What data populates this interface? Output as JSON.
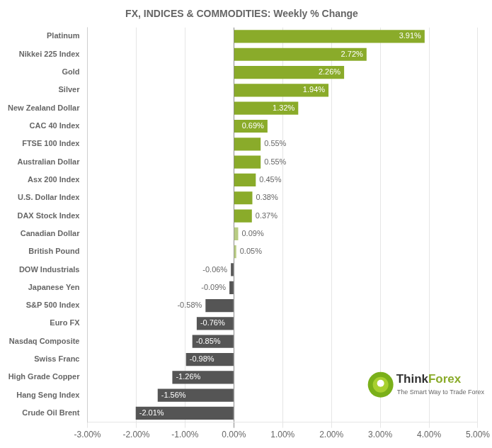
{
  "chart_data": {
    "type": "bar",
    "orientation": "horizontal",
    "title": "FX, INDICES & COMMODITIES: Weekly % Change",
    "categories": [
      "Platinum",
      "Nikkei 225 Index",
      "Gold",
      "Silver",
      "New Zealand Dollar",
      "CAC 40 Index",
      "FTSE 100 Index",
      "Australian Dollar",
      "Asx 200 Index",
      "U.S. Dollar Index",
      "DAX Stock Index",
      "Canadian Dollar",
      "British Pound",
      "DOW Industrials",
      "Japanese Yen",
      "S&P 500 Index",
      "Euro FX",
      "Nasdaq Composite",
      "Swiss Franc",
      "High Grade Copper",
      "Hang Seng Index",
      "Crude Oil Brent"
    ],
    "values": [
      3.91,
      2.72,
      2.26,
      1.94,
      1.32,
      0.69,
      0.55,
      0.55,
      0.45,
      0.38,
      0.37,
      0.09,
      0.05,
      -0.06,
      -0.09,
      -0.58,
      -0.76,
      -0.85,
      -0.98,
      -1.26,
      -1.56,
      -2.01
    ],
    "value_labels": [
      "3.91%",
      "2.72%",
      "2.26%",
      "1.94%",
      "1.32%",
      "0.69%",
      "0.55%",
      "0.55%",
      "0.45%",
      "0.38%",
      "0.37%",
      "0.09%",
      "0.05%",
      "-0.06%",
      "-0.09%",
      "-0.58%",
      "-0.76%",
      "-0.85%",
      "-0.98%",
      "-1.26%",
      "-1.56%",
      "-2.01%"
    ],
    "colors": [
      "#8aab2a",
      "#8aab2a",
      "#8aab2a",
      "#8aab2a",
      "#8aab2a",
      "#8aab2a",
      "#8aab2a",
      "#8aab2a",
      "#8aab2a",
      "#8aab2a",
      "#8aab2a",
      "#b8cc82",
      "#b8cc82",
      "#555555",
      "#555555",
      "#555555",
      "#555555",
      "#555555",
      "#555555",
      "#555555",
      "#555555",
      "#555555"
    ],
    "data_labels": true,
    "xlim": [
      -3.0,
      5.0
    ],
    "xticks": [
      {
        "value": -3.0,
        "label": "-3.00%"
      },
      {
        "value": -2.0,
        "label": "-2.00%"
      },
      {
        "value": -1.0,
        "label": "-1.00%"
      },
      {
        "value": 0.0,
        "label": "0.00%"
      },
      {
        "value": 1.0,
        "label": "1.00%"
      },
      {
        "value": 2.0,
        "label": "2.00%"
      },
      {
        "value": 3.0,
        "label": "3.00%"
      },
      {
        "value": 4.0,
        "label": "4.00%"
      },
      {
        "value": 5.0,
        "label": "5.00%"
      }
    ],
    "grid": true,
    "annotations": [
      {
        "text": "Think",
        "color": "#333333"
      },
      {
        "text": "Forex",
        "color": "#8aab2a"
      }
    ],
    "subtitle": "The Smart Way to Trade Forex"
  }
}
